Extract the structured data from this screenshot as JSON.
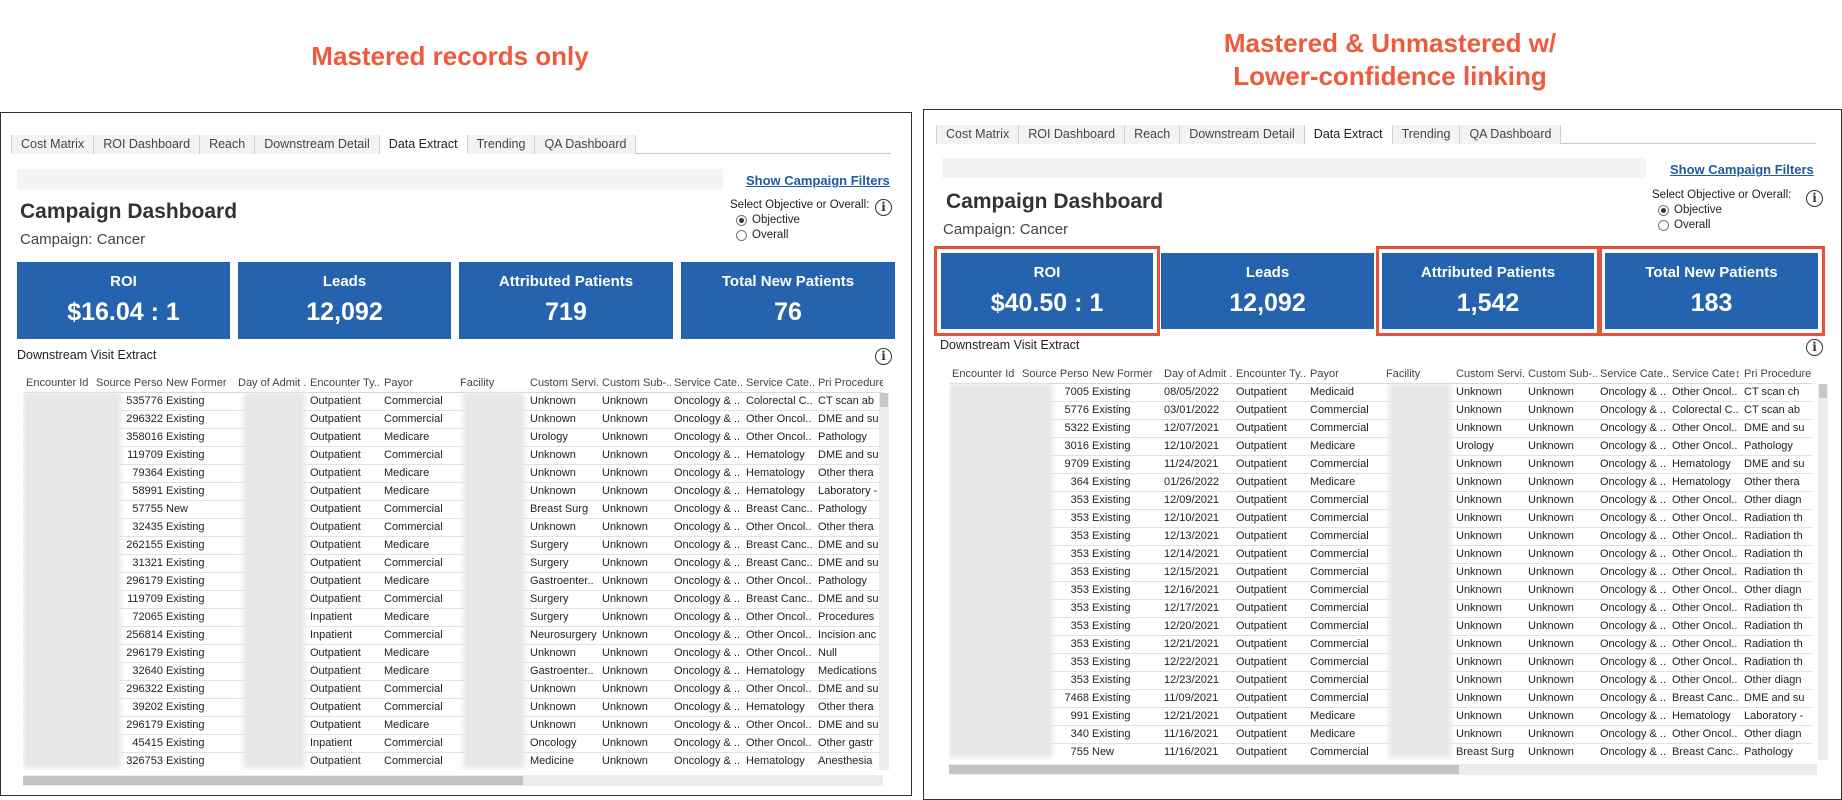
{
  "captions": {
    "left": "Mastered records only",
    "right_line1": "Mastered & Unmastered w/",
    "right_line2": "Lower-confidence linking"
  },
  "tabs": [
    "Cost Matrix",
    "ROI Dashboard",
    "Reach",
    "Downstream Detail",
    "Data Extract",
    "Trending",
    "QA Dashboard"
  ],
  "active_tab": "Data Extract",
  "show_filters": "Show Campaign Filters",
  "dashboard_title": "Campaign Dashboard",
  "campaign": "Campaign: Cancer",
  "objective": {
    "label": "Select Objective or Overall:",
    "options": [
      "Objective",
      "Overall"
    ],
    "selected": "Objective"
  },
  "info_icon": "i",
  "section_title": "Downstream Visit Extract",
  "columns": [
    "Encounter Id",
    "Source Perso..",
    "New Former",
    "Day of Admit ..",
    "Encounter Ty..",
    "Payor",
    "Facility",
    "Custom Servi..",
    "Custom Sub-..",
    "Service Cate..",
    "Service Cate..",
    "Pri Procedure"
  ],
  "columns_right": [
    "Encounter Id",
    "Source Perso..",
    "New Former",
    "Day of Admit ..",
    "Encounter Ty..",
    "Payor",
    "Facility",
    "Custom Servi..",
    "Custom Sub-..",
    "Service Cate..",
    "Service Cate↕↓",
    "Pri Procedure"
  ],
  "left": {
    "kpis": [
      {
        "label": "ROI",
        "value": "$16.04 : 1"
      },
      {
        "label": "Leads",
        "value": "12,092"
      },
      {
        "label": "Attributed Patients",
        "value": "719"
      },
      {
        "label": "Total New Patients",
        "value": "76"
      }
    ],
    "rows": [
      [
        "",
        "535776",
        "Existing",
        "",
        "Outpatient",
        "Commercial",
        "",
        "Unknown",
        "Unknown",
        "Oncology & ..",
        "Colorectal C..",
        "CT scan ab"
      ],
      [
        "",
        "296322",
        "Existing",
        "",
        "Outpatient",
        "Commercial",
        "",
        "Unknown",
        "Unknown",
        "Oncology & ..",
        "Other Oncol..",
        "DME and su"
      ],
      [
        "",
        "358016",
        "Existing",
        "",
        "Outpatient",
        "Medicare",
        "",
        "Urology",
        "Unknown",
        "Oncology & ..",
        "Other Oncol..",
        "Pathology"
      ],
      [
        "",
        "119709",
        "Existing",
        "",
        "Outpatient",
        "Commercial",
        "",
        "Unknown",
        "Unknown",
        "Oncology & ..",
        "Hematology",
        "DME and su"
      ],
      [
        "",
        "79364",
        "Existing",
        "",
        "Outpatient",
        "Medicare",
        "",
        "Unknown",
        "Unknown",
        "Oncology & ..",
        "Hematology",
        "Other thera"
      ],
      [
        "",
        "58991",
        "Existing",
        "",
        "Outpatient",
        "Medicare",
        "",
        "Unknown",
        "Unknown",
        "Oncology & ..",
        "Hematology",
        "Laboratory -"
      ],
      [
        "",
        "57755",
        "New",
        "",
        "Outpatient",
        "Commercial",
        "",
        "Breast Surg",
        "Unknown",
        "Oncology & ..",
        "Breast Canc..",
        "Pathology"
      ],
      [
        "",
        "32435",
        "Existing",
        "",
        "Outpatient",
        "Commercial",
        "",
        "Unknown",
        "Unknown",
        "Oncology & ..",
        "Other Oncol..",
        "Other thera"
      ],
      [
        "",
        "262155",
        "Existing",
        "",
        "Outpatient",
        "Medicare",
        "",
        "Surgery",
        "Unknown",
        "Oncology & ..",
        "Breast Canc..",
        "DME and su"
      ],
      [
        "",
        "31321",
        "Existing",
        "",
        "Outpatient",
        "Commercial",
        "",
        "Surgery",
        "Unknown",
        "Oncology & ..",
        "Breast Canc..",
        "DME and su"
      ],
      [
        "",
        "296179",
        "Existing",
        "",
        "Outpatient",
        "Medicare",
        "",
        "Gastroenter..",
        "Unknown",
        "Oncology & ..",
        "Other Oncol..",
        "Pathology"
      ],
      [
        "",
        "119709",
        "Existing",
        "",
        "Outpatient",
        "Commercial",
        "",
        "Surgery",
        "Unknown",
        "Oncology & ..",
        "Breast Canc..",
        "DME and su"
      ],
      [
        "",
        "72065",
        "Existing",
        "",
        "Inpatient",
        "Medicare",
        "",
        "Surgery",
        "Unknown",
        "Oncology & ..",
        "Other Oncol..",
        "Procedures"
      ],
      [
        "",
        "256814",
        "Existing",
        "",
        "Inpatient",
        "Commercial",
        "",
        "Neurosurgery",
        "Unknown",
        "Oncology & ..",
        "Other Oncol..",
        "Incision anc"
      ],
      [
        "",
        "296179",
        "Existing",
        "",
        "Outpatient",
        "Medicare",
        "",
        "Unknown",
        "Unknown",
        "Oncology & ..",
        "Other Oncol..",
        "Null"
      ],
      [
        "",
        "32640",
        "Existing",
        "",
        "Outpatient",
        "Medicare",
        "",
        "Gastroenter..",
        "Unknown",
        "Oncology & ..",
        "Hematology",
        "Medications"
      ],
      [
        "",
        "296322",
        "Existing",
        "",
        "Outpatient",
        "Commercial",
        "",
        "Unknown",
        "Unknown",
        "Oncology & ..",
        "Other Oncol..",
        "DME and su"
      ],
      [
        "",
        "39202",
        "Existing",
        "",
        "Outpatient",
        "Commercial",
        "",
        "Unknown",
        "Unknown",
        "Oncology & ..",
        "Hematology",
        "Other thera"
      ],
      [
        "",
        "296179",
        "Existing",
        "",
        "Outpatient",
        "Medicare",
        "",
        "Unknown",
        "Unknown",
        "Oncology & ..",
        "Other Oncol..",
        "DME and su"
      ],
      [
        "",
        "45415",
        "Existing",
        "",
        "Inpatient",
        "Commercial",
        "",
        "Oncology",
        "Unknown",
        "Oncology & ..",
        "Other Oncol..",
        "Other gastr"
      ],
      [
        "",
        "326753",
        "Existing",
        "",
        "Outpatient",
        "Commercial",
        "",
        "Medicine",
        "Unknown",
        "Oncology & ..",
        "Hematology",
        "Anesthesia"
      ]
    ]
  },
  "right": {
    "kpis": [
      {
        "label": "ROI",
        "value": "$40.50 : 1"
      },
      {
        "label": "Leads",
        "value": "12,092"
      },
      {
        "label": "Attributed Patients",
        "value": "1,542"
      },
      {
        "label": "Total New Patients",
        "value": "183"
      }
    ],
    "rows": [
      [
        "",
        "7005",
        "Existing",
        "08/05/2022",
        "Outpatient",
        "Medicaid",
        "",
        "Unknown",
        "Unknown",
        "Oncology & ..",
        "Other Oncol..",
        "CT scan ch"
      ],
      [
        "",
        "5776",
        "Existing",
        "03/01/2022",
        "Outpatient",
        "Commercial",
        "",
        "Unknown",
        "Unknown",
        "Oncology & ..",
        "Colorectal C..",
        "CT scan ab"
      ],
      [
        "",
        "5322",
        "Existing",
        "12/07/2021",
        "Outpatient",
        "Commercial",
        "",
        "Unknown",
        "Unknown",
        "Oncology & ..",
        "Other Oncol..",
        "DME and su"
      ],
      [
        "",
        "3016",
        "Existing",
        "12/10/2021",
        "Outpatient",
        "Medicare",
        "",
        "Urology",
        "Unknown",
        "Oncology & ..",
        "Other Oncol..",
        "Pathology"
      ],
      [
        "",
        "9709",
        "Existing",
        "11/24/2021",
        "Outpatient",
        "Commercial",
        "",
        "Unknown",
        "Unknown",
        "Oncology & ..",
        "Hematology",
        "DME and su"
      ],
      [
        "",
        "364",
        "Existing",
        "01/26/2022",
        "Outpatient",
        "Medicare",
        "",
        "Unknown",
        "Unknown",
        "Oncology & ..",
        "Hematology",
        "Other thera"
      ],
      [
        "",
        "353",
        "Existing",
        "12/09/2021",
        "Outpatient",
        "Commercial",
        "",
        "Unknown",
        "Unknown",
        "Oncology & ..",
        "Other Oncol..",
        "Other diagn"
      ],
      [
        "",
        "353",
        "Existing",
        "12/10/2021",
        "Outpatient",
        "Commercial",
        "",
        "Unknown",
        "Unknown",
        "Oncology & ..",
        "Other Oncol..",
        "Radiation th"
      ],
      [
        "",
        "353",
        "Existing",
        "12/13/2021",
        "Outpatient",
        "Commercial",
        "",
        "Unknown",
        "Unknown",
        "Oncology & ..",
        "Other Oncol..",
        "Radiation th"
      ],
      [
        "",
        "353",
        "Existing",
        "12/14/2021",
        "Outpatient",
        "Commercial",
        "",
        "Unknown",
        "Unknown",
        "Oncology & ..",
        "Other Oncol..",
        "Radiation th"
      ],
      [
        "",
        "353",
        "Existing",
        "12/15/2021",
        "Outpatient",
        "Commercial",
        "",
        "Unknown",
        "Unknown",
        "Oncology & ..",
        "Other Oncol..",
        "Radiation th"
      ],
      [
        "",
        "353",
        "Existing",
        "12/16/2021",
        "Outpatient",
        "Commercial",
        "",
        "Unknown",
        "Unknown",
        "Oncology & ..",
        "Other Oncol..",
        "Other diagn"
      ],
      [
        "",
        "353",
        "Existing",
        "12/17/2021",
        "Outpatient",
        "Commercial",
        "",
        "Unknown",
        "Unknown",
        "Oncology & ..",
        "Other Oncol..",
        "Radiation th"
      ],
      [
        "",
        "353",
        "Existing",
        "12/20/2021",
        "Outpatient",
        "Commercial",
        "",
        "Unknown",
        "Unknown",
        "Oncology & ..",
        "Other Oncol..",
        "Radiation th"
      ],
      [
        "",
        "353",
        "Existing",
        "12/21/2021",
        "Outpatient",
        "Commercial",
        "",
        "Unknown",
        "Unknown",
        "Oncology & ..",
        "Other Oncol..",
        "Radiation th"
      ],
      [
        "",
        "353",
        "Existing",
        "12/22/2021",
        "Outpatient",
        "Commercial",
        "",
        "Unknown",
        "Unknown",
        "Oncology & ..",
        "Other Oncol..",
        "Radiation th"
      ],
      [
        "",
        "353",
        "Existing",
        "12/23/2021",
        "Outpatient",
        "Commercial",
        "",
        "Unknown",
        "Unknown",
        "Oncology & ..",
        "Other Oncol..",
        "Other diagn"
      ],
      [
        "",
        "7468",
        "Existing",
        "11/09/2021",
        "Outpatient",
        "Commercial",
        "",
        "Unknown",
        "Unknown",
        "Oncology & ..",
        "Breast Canc..",
        "DME and su"
      ],
      [
        "",
        "991",
        "Existing",
        "12/21/2021",
        "Outpatient",
        "Medicare",
        "",
        "Unknown",
        "Unknown",
        "Oncology & ..",
        "Hematology",
        "Laboratory -"
      ],
      [
        "",
        "340",
        "Existing",
        "11/16/2021",
        "Outpatient",
        "Medicare",
        "",
        "Unknown",
        "Unknown",
        "Oncology & ..",
        "Other Oncol..",
        "Other diagn"
      ],
      [
        "",
        "755",
        "New",
        "11/16/2021",
        "Outpatient",
        "Commercial",
        "",
        "Breast Surg",
        "Unknown",
        "Oncology & ..",
        "Breast Canc..",
        "Pathology"
      ]
    ]
  }
}
